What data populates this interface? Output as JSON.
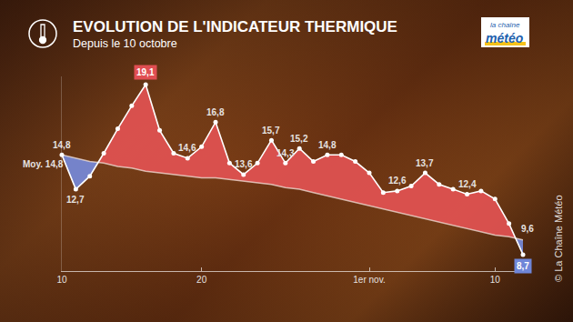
{
  "chart_data": {
    "type": "line",
    "title": "EVOLUTION DE L'INDICATEUR THERMIQUE",
    "subtitle": "Depuis le 10 octobre",
    "annotations": [
      "la chaîne",
      "météo",
      "© La Chaîne Météo"
    ],
    "categories": [
      "10",
      null,
      null,
      null,
      null,
      null,
      null,
      null,
      null,
      null,
      "20",
      null,
      null,
      null,
      null,
      null,
      null,
      null,
      null,
      null,
      null,
      null,
      "1er nov.",
      null,
      null,
      null,
      null,
      null,
      null,
      null,
      null,
      "10",
      null,
      null
    ],
    "series": [
      {
        "color": "#ffffff",
        "values": [
          14.8,
          12.7,
          13.5,
          14.9,
          16.4,
          17.8,
          19.1,
          16.3,
          14.9,
          14.6,
          15.3,
          16.8,
          14.3,
          13.6,
          14.3,
          15.7,
          14.3,
          15.2,
          14.4,
          14.8,
          14.8,
          14.4,
          13.7,
          12.5,
          12.6,
          12.9,
          13.7,
          13.0,
          12.7,
          12.4,
          12.6,
          12.1,
          10.6,
          8.7
        ],
        "value_labels": [
          "14,8",
          "12,7",
          null,
          null,
          null,
          null,
          "19,1",
          null,
          null,
          "14,6",
          null,
          "16,8",
          null,
          "13,6",
          null,
          "15,7",
          "14,3",
          "15,2",
          null,
          "14,8",
          null,
          null,
          null,
          null,
          "12,6",
          null,
          "13,7",
          null,
          null,
          "12,4",
          null,
          null,
          null,
          "8,7"
        ]
      },
      {
        "color": "#f3e2da",
        "values": [
          14.8,
          14.6,
          14.4,
          14.3,
          14.1,
          14.0,
          13.8,
          13.7,
          13.6,
          13.5,
          13.4,
          13.4,
          13.3,
          13.2,
          13.1,
          13.0,
          12.8,
          12.7,
          12.5,
          12.3,
          12.1,
          11.9,
          11.7,
          11.5,
          11.3,
          11.1,
          10.9,
          10.7,
          10.5,
          10.3,
          10.1,
          9.9,
          9.8,
          9.6
        ],
        "value_labels": [
          "Moy. 14,8",
          null,
          null,
          null,
          null,
          null,
          null,
          null,
          null,
          null,
          null,
          null,
          null,
          null,
          null,
          null,
          null,
          null,
          null,
          null,
          null,
          null,
          null,
          null,
          null,
          null,
          null,
          null,
          null,
          null,
          null,
          null,
          null,
          "9,6"
        ]
      }
    ],
    "ylim": [
      7.7,
      19.6
    ],
    "grid": false,
    "tick_labels": "x"
  }
}
